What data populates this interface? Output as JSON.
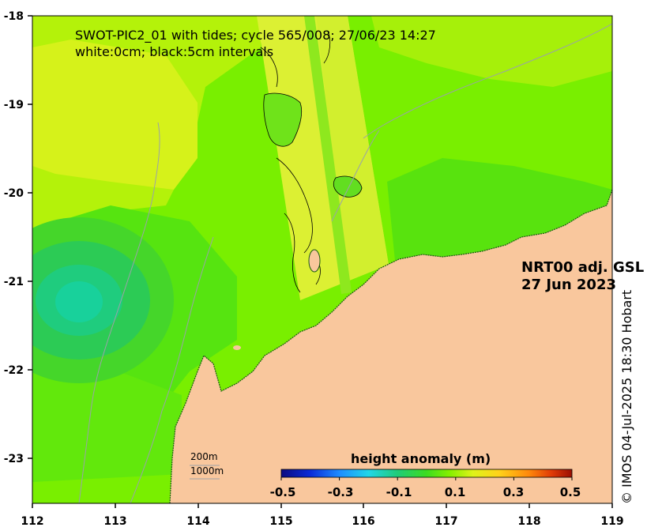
{
  "map": {
    "title_line1": "SWOT-PIC2_01 with tides; cycle 565/008; 27/06/23 14:27",
    "title_line2": "white:0cm; black:5cm intervals",
    "product_line1": "NRT00 adj. GSL",
    "product_line2": "27 Jun 2023",
    "credit": "© IMOS 04-Jul-2025 18:30 Hobart",
    "lon_ticks": [
      "112",
      "113",
      "114",
      "115",
      "116",
      "117",
      "118",
      "119"
    ],
    "lat_ticks": [
      "-18",
      "-19",
      "-20",
      "-21",
      "-22",
      "-23"
    ],
    "lon_range": [
      112,
      119
    ],
    "lat_range": [
      -23.5,
      -18
    ],
    "scale_200": "200m",
    "scale_1000": "1000m"
  },
  "colorbar": {
    "title": "height anomaly (m)",
    "ticks": [
      "-0.5",
      "-0.3",
      "-0.1",
      "0.1",
      "0.3",
      "0.5"
    ],
    "range": [
      -0.5,
      0.5
    ]
  },
  "colors": {
    "land": "#f9c79d",
    "ocean_base": "#79ef00",
    "swath": "#dcf033"
  }
}
